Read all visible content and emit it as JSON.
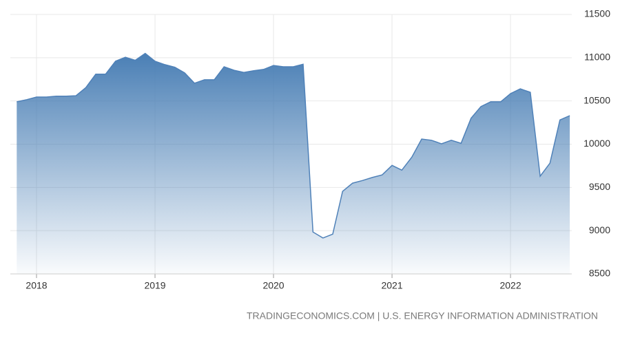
{
  "chart_data": {
    "type": "area",
    "source": "TRADINGECONOMICS.COM | U.S. ENERGY INFORMATION ADMINISTRATION",
    "x": [
      2017.833,
      2017.917,
      2018,
      2018.083,
      2018.167,
      2018.25,
      2018.333,
      2018.417,
      2018.5,
      2018.583,
      2018.667,
      2018.75,
      2018.833,
      2018.917,
      2019,
      2019.083,
      2019.167,
      2019.25,
      2019.333,
      2019.417,
      2019.5,
      2019.583,
      2019.667,
      2019.75,
      2019.833,
      2019.917,
      2020,
      2020.083,
      2020.167,
      2020.25,
      2020.333,
      2020.417,
      2020.5,
      2020.583,
      2020.667,
      2020.75,
      2020.833,
      2020.917,
      2021,
      2021.083,
      2021.167,
      2021.25,
      2021.333,
      2021.417,
      2021.5,
      2021.583,
      2021.667,
      2021.75,
      2021.833,
      2021.917,
      2022,
      2022.083,
      2022.167,
      2022.25,
      2022.333,
      2022.417,
      2022.5
    ],
    "values": [
      10490,
      10515,
      10545,
      10545,
      10555,
      10555,
      10560,
      10655,
      10810,
      10810,
      10960,
      11005,
      10970,
      11050,
      10960,
      10920,
      10890,
      10825,
      10705,
      10745,
      10745,
      10895,
      10855,
      10830,
      10850,
      10865,
      10910,
      10895,
      10895,
      10925,
      8985,
      8915,
      8960,
      9455,
      9550,
      9580,
      9615,
      9645,
      9755,
      9700,
      9850,
      10060,
      10045,
      10005,
      10045,
      10010,
      10300,
      10435,
      10490,
      10490,
      10585,
      10640,
      10600,
      9630,
      9780,
      10280,
      10330
    ],
    "color": "#4f81b8",
    "xlim": [
      2017.779,
      2022.517
    ],
    "xticks": [
      2018,
      2019,
      2020,
      2021,
      2022
    ],
    "ylim": [
      8500,
      11500
    ],
    "yticks": [
      8500,
      9000,
      9500,
      10000,
      10500,
      11000,
      11500
    ],
    "grid": true
  }
}
